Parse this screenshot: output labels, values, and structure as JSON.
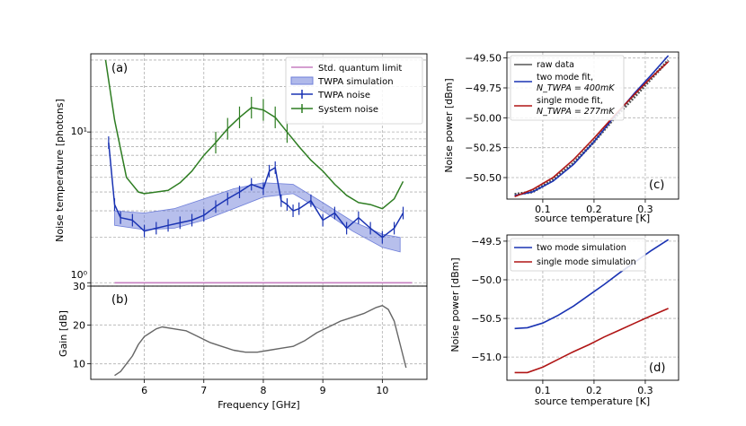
{
  "colors": {
    "sql": "#c77fc1",
    "sim": "#6f7fd9",
    "twpa": "#1a33b3",
    "sys": "#2e7d22",
    "raw": "#555555",
    "two": "#1a33b3",
    "single": "#b01515",
    "grid": "#b0b0b0"
  },
  "chart_data": [
    {
      "id": "a",
      "type": "line",
      "panel_label": "(a)",
      "ylabel": "Noise temperature [photons]",
      "yscale": "log",
      "ylim": [
        0.95,
        33
      ],
      "xlim": [
        5.1,
        10.75
      ],
      "yticks": [
        1,
        10
      ],
      "ytick_labels": [
        "10⁰",
        "10¹"
      ],
      "legend": [
        "Std. quantum limit",
        "TWPA simulation",
        "TWPA noise",
        "System noise"
      ],
      "series": [
        {
          "name": "Std. quantum limit",
          "x": [
            5.5,
            10.5
          ],
          "y": [
            1.0,
            1.0
          ]
        },
        {
          "name": "TWPA simulation",
          "x": [
            5.5,
            6.0,
            6.5,
            7.0,
            7.5,
            8.0,
            8.5,
            9.0,
            9.5,
            10.0,
            10.3
          ],
          "y_low": [
            2.4,
            2.25,
            2.3,
            2.6,
            3.1,
            3.7,
            3.9,
            3.0,
            2.2,
            1.72,
            1.6
          ],
          "y_high": [
            3.0,
            2.9,
            3.1,
            3.6,
            4.2,
            4.6,
            4.5,
            3.4,
            2.55,
            2.1,
            2.0
          ]
        },
        {
          "name": "TWPA noise",
          "x": [
            5.4,
            5.5,
            5.6,
            5.8,
            6.0,
            6.2,
            6.4,
            6.6,
            6.8,
            7.0,
            7.2,
            7.4,
            7.6,
            7.8,
            8.0,
            8.1,
            8.2,
            8.3,
            8.4,
            8.5,
            8.6,
            8.8,
            9.0,
            9.2,
            9.4,
            9.6,
            9.8,
            10.0,
            10.2,
            10.35
          ],
          "y": [
            8.5,
            3.3,
            2.7,
            2.6,
            2.2,
            2.3,
            2.4,
            2.5,
            2.6,
            2.8,
            3.2,
            3.6,
            4.0,
            4.5,
            4.2,
            5.5,
            5.8,
            3.5,
            3.3,
            3.0,
            3.1,
            3.5,
            2.6,
            2.9,
            2.3,
            2.7,
            2.3,
            2.0,
            2.3,
            2.9
          ]
        },
        {
          "name": "System noise",
          "x": [
            5.35,
            5.5,
            5.7,
            5.9,
            6.0,
            6.2,
            6.4,
            6.6,
            6.8,
            7.0,
            7.2,
            7.4,
            7.6,
            7.8,
            8.0,
            8.2,
            8.4,
            8.6,
            8.8,
            9.0,
            9.2,
            9.4,
            9.6,
            9.8,
            10.0,
            10.2,
            10.35
          ],
          "y": [
            30,
            12,
            5.0,
            4.0,
            3.9,
            4.0,
            4.1,
            4.6,
            5.5,
            7.0,
            8.5,
            10.5,
            12.5,
            14.5,
            14.0,
            12.5,
            10.0,
            8.0,
            6.5,
            5.5,
            4.5,
            3.8,
            3.4,
            3.3,
            3.1,
            3.6,
            4.7
          ]
        }
      ]
    },
    {
      "id": "b",
      "type": "line",
      "panel_label": "(b)",
      "xlabel": "Frequency [GHz]",
      "ylabel": "Gain [dB]",
      "ylim": [
        6,
        30
      ],
      "xlim": [
        5.1,
        10.75
      ],
      "xticks": [
        "6",
        "7",
        "8",
        "9",
        "10"
      ],
      "yticks": [
        "10",
        "20",
        "30"
      ],
      "series": [
        {
          "name": "Gain",
          "x": [
            5.5,
            5.6,
            5.7,
            5.8,
            5.9,
            6.0,
            6.1,
            6.2,
            6.3,
            6.5,
            6.7,
            6.9,
            7.1,
            7.3,
            7.5,
            7.7,
            7.9,
            8.1,
            8.3,
            8.5,
            8.7,
            8.9,
            9.1,
            9.3,
            9.5,
            9.7,
            9.9,
            10.0,
            10.1,
            10.2,
            10.3,
            10.4
          ],
          "y": [
            7,
            8,
            10,
            12,
            15,
            17,
            18,
            19,
            19.5,
            19,
            18.5,
            17,
            15.5,
            14.5,
            13.5,
            13,
            13,
            13.5,
            14,
            14.5,
            16,
            18,
            19.5,
            21,
            22,
            23,
            24.5,
            25,
            24,
            21,
            15,
            9
          ]
        }
      ]
    },
    {
      "id": "c",
      "type": "line",
      "panel_label": "(c)",
      "xlabel": "source temperature [K]",
      "ylabel": "Noise power [dBm]",
      "xlim": [
        0.03,
        0.365
      ],
      "ylim": [
        -50.68,
        -49.45
      ],
      "xticks": [
        "0.1",
        "0.2",
        "0.3"
      ],
      "yticks": [
        "−49.50",
        "−49.75",
        "−50.00",
        "−50.25",
        "−50.50"
      ],
      "legend": [
        "raw data",
        "two mode fit,",
        "single mode fit,"
      ],
      "legend_sub": [
        "N_TWPA = 400mK",
        "N_TWPA = 277mK"
      ],
      "series": [
        {
          "name": "raw data",
          "x": [
            0.045,
            0.08,
            0.12,
            0.16,
            0.2,
            0.24,
            0.28,
            0.31,
            0.345
          ],
          "y": [
            -50.64,
            -50.62,
            -50.52,
            -50.38,
            -50.2,
            -50.0,
            -49.82,
            -49.68,
            -49.52
          ]
        },
        {
          "name": "two mode fit",
          "x": [
            0.045,
            0.08,
            0.12,
            0.16,
            0.2,
            0.24,
            0.28,
            0.31,
            0.345
          ],
          "y": [
            -50.65,
            -50.62,
            -50.53,
            -50.39,
            -50.2,
            -49.99,
            -49.79,
            -49.65,
            -49.48
          ]
        },
        {
          "name": "single mode fit",
          "x": [
            0.045,
            0.08,
            0.12,
            0.16,
            0.2,
            0.24,
            0.28,
            0.31,
            0.345
          ],
          "y": [
            -50.66,
            -50.6,
            -50.5,
            -50.35,
            -50.17,
            -49.98,
            -49.8,
            -49.67,
            -49.53
          ]
        }
      ]
    },
    {
      "id": "d",
      "type": "line",
      "panel_label": "(d)",
      "xlabel": "source temperature [K]",
      "ylabel": "Noise power [dBm]",
      "xlim": [
        0.03,
        0.365
      ],
      "ylim": [
        -51.3,
        -49.42
      ],
      "xticks": [
        "0.1",
        "0.2",
        "0.3"
      ],
      "yticks": [
        "−49.5",
        "−50.0",
        "−50.5",
        "−51.0"
      ],
      "legend": [
        "two mode simulation",
        "single mode simulation"
      ],
      "series": [
        {
          "name": "two mode simulation",
          "x": [
            0.045,
            0.07,
            0.1,
            0.13,
            0.16,
            0.19,
            0.22,
            0.25,
            0.28,
            0.31,
            0.345
          ],
          "y": [
            -50.63,
            -50.62,
            -50.56,
            -50.46,
            -50.34,
            -50.2,
            -50.06,
            -49.91,
            -49.77,
            -49.63,
            -49.48
          ]
        },
        {
          "name": "single mode simulation",
          "x": [
            0.045,
            0.07,
            0.1,
            0.13,
            0.16,
            0.19,
            0.22,
            0.25,
            0.28,
            0.31,
            0.345
          ],
          "y": [
            -51.2,
            -51.2,
            -51.13,
            -51.03,
            -50.93,
            -50.84,
            -50.74,
            -50.65,
            -50.56,
            -50.47,
            -50.37
          ]
        }
      ]
    }
  ]
}
